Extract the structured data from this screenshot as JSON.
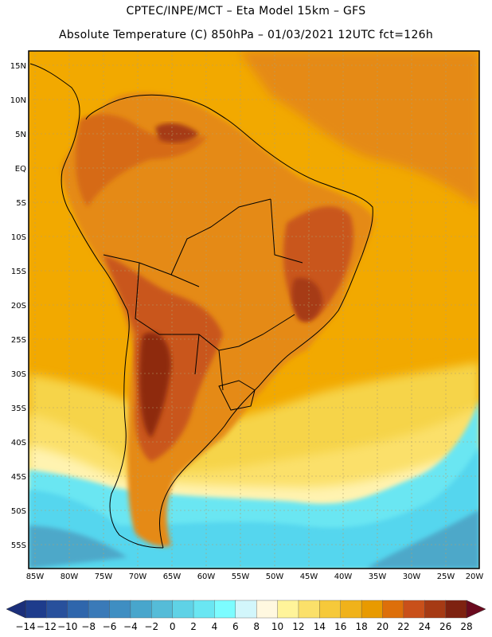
{
  "header": {
    "line1": "CPTEC/INPE/MCT –  Eta Model 15km – GFS",
    "line2": "Absolute Temperature (C) 850hPa – 01/03/2021 12UTC fct=126h"
  },
  "map": {
    "lat_labels": [
      "15N",
      "10N",
      "5N",
      "EQ",
      "5S",
      "10S",
      "15S",
      "20S",
      "25S",
      "30S",
      "35S",
      "40S",
      "45S",
      "50S",
      "55S"
    ],
    "lon_labels": [
      "85W",
      "80W",
      "75W",
      "70W",
      "65W",
      "60W",
      "55W",
      "50W",
      "45W",
      "40W",
      "35W",
      "30W",
      "25W",
      "20W"
    ],
    "palette": {
      "ocean_warm": "#f2a900",
      "ocean_orange": "#e58a18",
      "land_hot": "#c9561a",
      "land_hottest": "#8e2a10",
      "yellow": "#f6d44a",
      "pale": "#fff3b0",
      "cyan": "#55d6ee",
      "blue": "#4da8c9"
    }
  },
  "colorbar": {
    "labels": [
      "-14",
      "-12",
      "-10",
      "-8",
      "-6",
      "-4",
      "-2",
      "0",
      "2",
      "4",
      "6",
      "8",
      "10",
      "12",
      "14",
      "16",
      "18",
      "20",
      "22",
      "24",
      "26",
      "28"
    ],
    "colors": [
      "#1e3c8c",
      "#28509c",
      "#2f66ac",
      "#3a7ab8",
      "#3f8ec2",
      "#48a6cc",
      "#55bcd8",
      "#5fd2e6",
      "#6ae6f2",
      "#7cfcff",
      "#d2f6fb",
      "#fff8e0",
      "#fff49a",
      "#fbe06a",
      "#f6c93a",
      "#f0b21a",
      "#e89a00",
      "#dd6f0a",
      "#c9501a",
      "#a63a14",
      "#7e2210"
    ],
    "left_cap": "#1b2f7a",
    "right_cap": "#6a0a1e"
  }
}
